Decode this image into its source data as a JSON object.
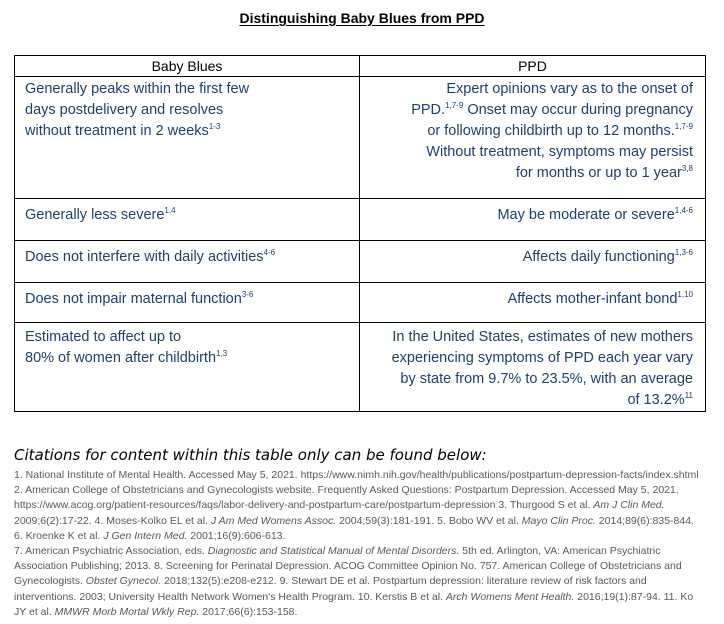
{
  "title": "Distinguishing Baby Blues from PPD",
  "table": {
    "headers": [
      "Baby Blues",
      "PPD"
    ],
    "rows": [
      {
        "left": {
          "lines": [
            "Generally peaks within the first few",
            "days postdelivery and resolves",
            "without treatment in 2 weeks"
          ],
          "sup": "1-3"
        },
        "right": {
          "l1": "Expert opinions vary as to the onset of",
          "l2a": "PPD.",
          "l2sup": "1,7-9",
          "l2b": "Onset may occur during pregnancy",
          "l3": "or following childbirth up to 12 months.",
          "l3sup": "1,7-9",
          "l4": "Without treatment, symptoms may persist",
          "l5": "for months or up to 1 year",
          "l5sup": "3,8"
        }
      },
      {
        "left": {
          "text": "Generally less severe",
          "sup": "1,4"
        },
        "right": {
          "text": "May be moderate or severe",
          "sup": "1,4-6"
        }
      },
      {
        "left": {
          "text": "Does not interfere with daily activities",
          "sup": "4-6"
        },
        "right": {
          "text": "Affects daily functioning",
          "sup": "1,3-6"
        }
      },
      {
        "left": {
          "text": "Does not impair maternal function",
          "sup": "3-6"
        },
        "right": {
          "text": "Affects mother-infant bond",
          "sup": "1,10"
        }
      },
      {
        "left": {
          "l1": "Estimated to affect up to",
          "l2": "80% of women after childbirth",
          "sup": "1,3"
        },
        "right": {
          "l1": "In the United States, estimates of new mothers",
          "l2": "experiencing symptoms of PPD each year vary",
          "l3": "by state from 9.7% to 23.5%, with an average",
          "l4": "of 13.2%",
          "sup": "11"
        }
      }
    ]
  },
  "citations_heading": "Citations for content within this table only can be found below:",
  "references": {
    "p1": {
      "a": "1. National Institute of Mental Health. Accessed May 5, 2021. https://www.nimh.nih.gov/health/publications/postpartum-depression-facts/index.shtml 2. American College of Obstetricians and Gynecologists website. Frequently Asked Questions: Postpartum Depression. Accessed May 5, 2021. https://www.acog.org/patient-resources/faqs/labor-delivery-and-postpartum-care/postpartum-depression 3. Thurgood S et al. ",
      "a_i": "Am J Clin Med.",
      "b": " 2009;6(2):17-22. 4. Moses-Kolko EL et al. ",
      "b_i": "J Am Med Womens Assoc.",
      "c": " 2004;59(3):181-191. 5. Bobo WV et al. ",
      "c_i": "Mayo Clin Proc.",
      "d": " 2014;89(6):835-844. 6. Kroenke K et al. ",
      "d_i": "J Gen Intern Med.",
      "e": " 2001;16(9):606-613."
    },
    "p2": {
      "a": "7. American Psychiatric Association, eds. ",
      "a_i": "Diagnostic and Statistical Manual of Mental Disorders.",
      "b": " 5th ed. Arlington, VA: American Psychiatric Association Publishing; 2013. 8. Screening for Perinatal Depression. ACOG Committee Opinion No. 757. American College of Obstetricians and Gynecologists. ",
      "b_i": "Obstet Gynecol.",
      "c": " 2018;132(5):e208-e212. 9. Stewart DE et al. Postpartum depression: literature review of risk factors and interventions. 2003; University Health Network Women's Health Program. 10. Kerstis B et al. ",
      "c_i": "Arch Womens Ment Health.",
      "d": " 2016;19(1):87-94. 11. Ko JY et al. ",
      "d_i": "MMWR Morb Mortal Wkly Rep.",
      "e": " 2017;66(6):153-158."
    }
  }
}
